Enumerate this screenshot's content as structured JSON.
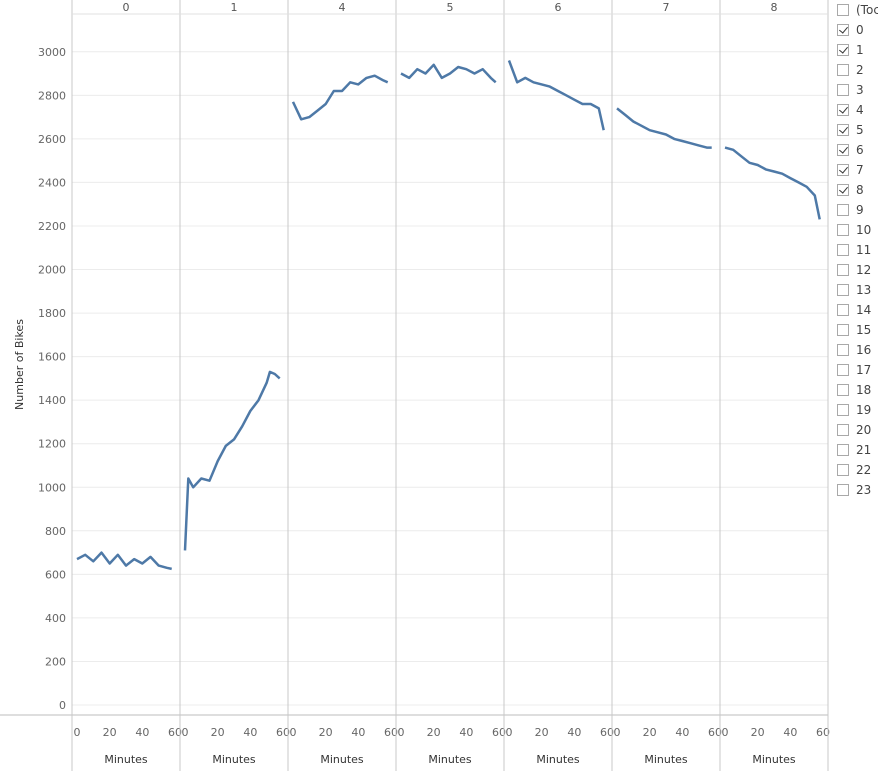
{
  "chart_data": {
    "type": "line",
    "ylabel": "Number of Bikes",
    "xlabel": "Minutes",
    "ylim": [
      0,
      3100
    ],
    "yticks": [
      0,
      200,
      400,
      600,
      800,
      1000,
      1200,
      1400,
      1600,
      1800,
      2000,
      2200,
      2400,
      2600,
      2800,
      3000
    ],
    "xticks": [
      0,
      20,
      40,
      60
    ],
    "panels": [
      {
        "label": "0",
        "x": [
          0,
          5,
          10,
          15,
          20,
          25,
          30,
          35,
          40,
          45,
          50,
          55,
          58
        ],
        "values": [
          670,
          690,
          660,
          700,
          650,
          690,
          640,
          670,
          650,
          680,
          640,
          630,
          625
        ]
      },
      {
        "label": "1",
        "x": [
          0,
          2,
          5,
          10,
          15,
          20,
          25,
          30,
          35,
          40,
          45,
          50,
          52,
          55,
          58
        ],
        "values": [
          710,
          1040,
          1000,
          1040,
          1030,
          1120,
          1190,
          1220,
          1280,
          1350,
          1400,
          1480,
          1530,
          1520,
          1500
        ]
      },
      {
        "label": "4",
        "x": [
          0,
          5,
          10,
          15,
          20,
          25,
          30,
          35,
          40,
          45,
          50,
          55,
          58
        ],
        "values": [
          2770,
          2690,
          2700,
          2730,
          2760,
          2820,
          2820,
          2860,
          2850,
          2880,
          2890,
          2870,
          2860
        ]
      },
      {
        "label": "5",
        "x": [
          0,
          5,
          10,
          15,
          20,
          25,
          30,
          35,
          40,
          45,
          50,
          55,
          58
        ],
        "values": [
          2900,
          2880,
          2920,
          2900,
          2940,
          2880,
          2900,
          2930,
          2920,
          2900,
          2920,
          2880,
          2860
        ]
      },
      {
        "label": "6",
        "x": [
          0,
          5,
          10,
          15,
          20,
          25,
          30,
          35,
          40,
          45,
          50,
          55,
          58
        ],
        "values": [
          2960,
          2860,
          2880,
          2860,
          2850,
          2840,
          2820,
          2800,
          2780,
          2760,
          2760,
          2740,
          2640
        ]
      },
      {
        "label": "7",
        "x": [
          0,
          5,
          10,
          15,
          20,
          25,
          30,
          35,
          40,
          45,
          50,
          55,
          58
        ],
        "values": [
          2740,
          2710,
          2680,
          2660,
          2640,
          2630,
          2620,
          2600,
          2590,
          2580,
          2570,
          2560,
          2560
        ]
      },
      {
        "label": "8",
        "x": [
          0,
          5,
          10,
          15,
          20,
          25,
          30,
          35,
          40,
          45,
          50,
          55,
          58
        ],
        "values": [
          2560,
          2550,
          2520,
          2490,
          2480,
          2460,
          2450,
          2440,
          2420,
          2400,
          2380,
          2340,
          2230
        ]
      }
    ],
    "line_color": "#4e79a7",
    "grid": true
  },
  "filter": {
    "title": "(Toc",
    "items": [
      {
        "label": "0",
        "checked": true
      },
      {
        "label": "1",
        "checked": true
      },
      {
        "label": "2",
        "checked": false
      },
      {
        "label": "3",
        "checked": false
      },
      {
        "label": "4",
        "checked": true
      },
      {
        "label": "5",
        "checked": true
      },
      {
        "label": "6",
        "checked": true
      },
      {
        "label": "7",
        "checked": true
      },
      {
        "label": "8",
        "checked": true
      },
      {
        "label": "9",
        "checked": false
      },
      {
        "label": "10",
        "checked": false
      },
      {
        "label": "11",
        "checked": false
      },
      {
        "label": "12",
        "checked": false
      },
      {
        "label": "13",
        "checked": false
      },
      {
        "label": "14",
        "checked": false
      },
      {
        "label": "15",
        "checked": false
      },
      {
        "label": "16",
        "checked": false
      },
      {
        "label": "17",
        "checked": false
      },
      {
        "label": "18",
        "checked": false
      },
      {
        "label": "19",
        "checked": false
      },
      {
        "label": "20",
        "checked": false
      },
      {
        "label": "21",
        "checked": false
      },
      {
        "label": "22",
        "checked": false
      },
      {
        "label": "23",
        "checked": false
      }
    ]
  }
}
